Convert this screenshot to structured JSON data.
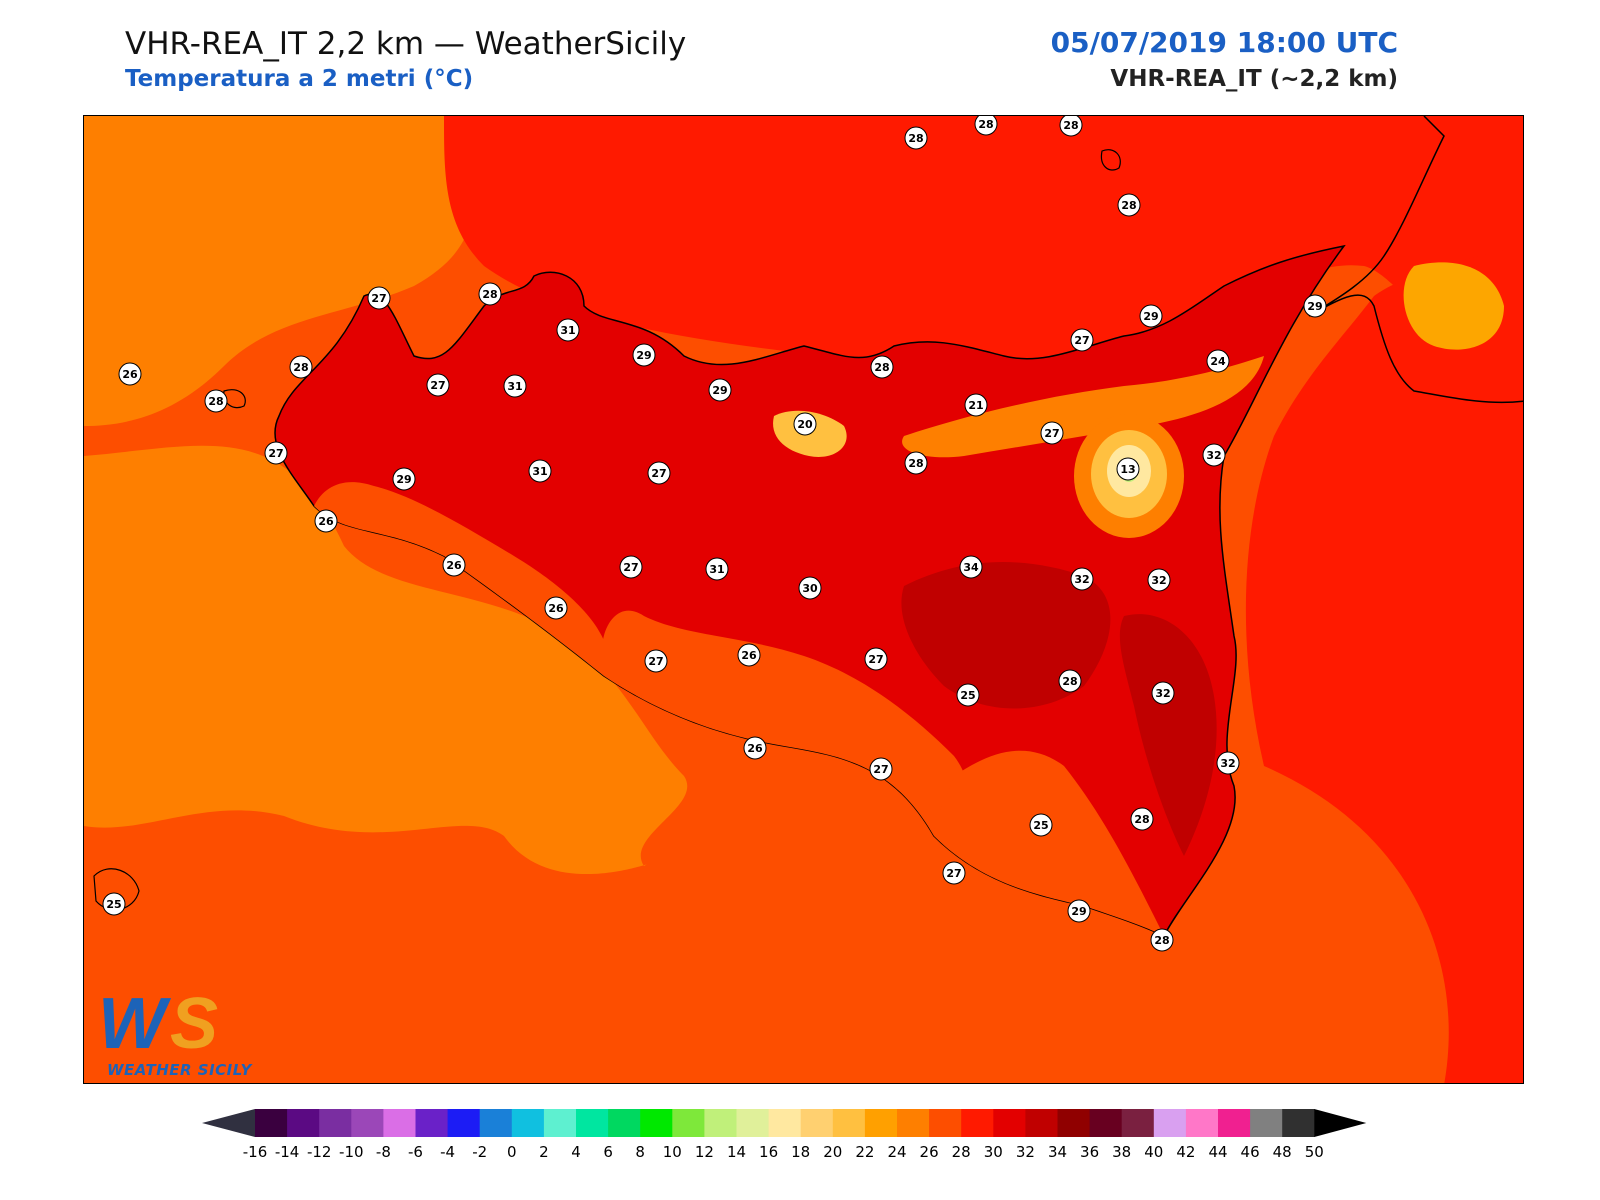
{
  "header": {
    "title": "VHR-REA_IT 2,2 km — WeatherSicily",
    "subtitle": "Temperatura a 2 metri (°C)",
    "datetime": "05/07/2019 18:00 UTC",
    "model": "VHR-REA_IT (~2,2 km)"
  },
  "logo": {
    "text": "WEATHER SICILY",
    "mark": "WS"
  },
  "colors": {
    "sea": "#fe7f00",
    "land_base": "#fd4e00",
    "hot": "#ff1a00",
    "very_hot": "#e30000",
    "extreme": "#c00000",
    "cool": "#fda600",
    "coast": "#000000"
  },
  "colorbar": {
    "ticks": [
      "-16",
      "-14",
      "-12",
      "-10",
      "-8",
      "-6",
      "-4",
      "-2",
      "0",
      "2",
      "4",
      "6",
      "8",
      "10",
      "12",
      "14",
      "16",
      "18",
      "20",
      "22",
      "24",
      "26",
      "28",
      "30",
      "32",
      "34",
      "36",
      "38",
      "40",
      "42",
      "44",
      "46",
      "48",
      "50"
    ],
    "colors": [
      "#3a003f",
      "#5b0a83",
      "#7a2ea1",
      "#9b47b8",
      "#da6ee6",
      "#6a21c8",
      "#1c1cf5",
      "#1a80d8",
      "#10c0e0",
      "#5ef0d0",
      "#00e6a0",
      "#00d860",
      "#00e800",
      "#7ee83a",
      "#c0f07a",
      "#e0f09a",
      "#ffe8a0",
      "#ffd070",
      "#ffc040",
      "#ffa000",
      "#fe7f00",
      "#fd4e00",
      "#ff1a00",
      "#e30000",
      "#c00000",
      "#900000",
      "#680020",
      "#7a2040",
      "#d9a0f0",
      "#ff77c8",
      "#f02090",
      "#808080",
      "#303030"
    ],
    "under_color": "#303040",
    "over_color": "#000000"
  },
  "stations": [
    {
      "value": "28"
    },
    {
      "value": "28"
    },
    {
      "value": "28"
    },
    {
      "value": "28"
    },
    {
      "value": "27"
    },
    {
      "value": "28"
    },
    {
      "value": "31"
    },
    {
      "value": "29"
    },
    {
      "value": "29"
    },
    {
      "value": "29"
    },
    {
      "value": "26"
    },
    {
      "value": "28"
    },
    {
      "value": "27"
    },
    {
      "value": "31"
    },
    {
      "value": "28"
    },
    {
      "value": "24"
    },
    {
      "value": "28"
    },
    {
      "value": "29"
    },
    {
      "value": "20"
    },
    {
      "value": "21"
    },
    {
      "value": "27"
    },
    {
      "value": "27"
    },
    {
      "value": "13"
    },
    {
      "value": "32"
    },
    {
      "value": "31"
    },
    {
      "value": "27"
    },
    {
      "value": "28"
    },
    {
      "value": "27"
    },
    {
      "value": "26"
    },
    {
      "value": "29"
    },
    {
      "value": "26"
    },
    {
      "value": "27"
    },
    {
      "value": "31"
    },
    {
      "value": "30"
    },
    {
      "value": "34"
    },
    {
      "value": "32"
    },
    {
      "value": "32"
    },
    {
      "value": "26"
    },
    {
      "value": "27"
    },
    {
      "value": "26"
    },
    {
      "value": "27"
    },
    {
      "value": "28"
    },
    {
      "value": "32"
    },
    {
      "value": "25"
    },
    {
      "value": "26"
    },
    {
      "value": "27"
    },
    {
      "value": "32"
    },
    {
      "value": "25"
    },
    {
      "value": "28"
    },
    {
      "value": "27"
    },
    {
      "value": "25"
    },
    {
      "value": "29"
    },
    {
      "value": "28"
    }
  ]
}
